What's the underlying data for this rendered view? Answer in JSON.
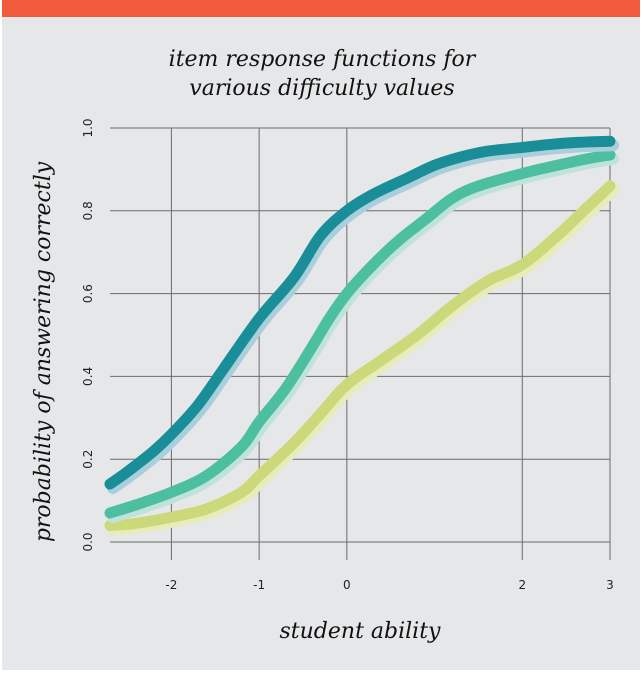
{
  "chart_data": {
    "type": "line",
    "title_lines": [
      "item response functions for",
      "various difficulty values"
    ],
    "xlabel": "student ability",
    "ylabel": "probability of answering correctly",
    "xlim": [
      -2.7,
      3
    ],
    "ylim": [
      0,
      1
    ],
    "xticks": [
      -2,
      -1,
      0,
      2,
      3
    ],
    "xtick_labels": [
      "-2",
      "-1",
      "0",
      "2",
      "3"
    ],
    "yticks": [
      0,
      0.2,
      0.4,
      0.6,
      0.8,
      1.0
    ],
    "ytick_labels": [
      "0.0",
      "0.2",
      "0.4",
      "0.6",
      "0.8",
      "1.0"
    ],
    "grid": true,
    "series": [
      {
        "color": "#1a8e98",
        "shadow": "#a9cfdc",
        "x": [
          -2.7,
          -2.5,
          -2.2,
          -2,
          -1.7,
          -1.4,
          -1,
          -0.6,
          -0.3,
          0,
          0.3,
          0.7,
          1,
          1.3,
          1.6,
          2,
          2.3,
          2.6,
          3
        ],
        "y": [
          0.14,
          0.17,
          0.22,
          0.26,
          0.33,
          0.42,
          0.54,
          0.64,
          0.74,
          0.8,
          0.84,
          0.88,
          0.91,
          0.93,
          0.944,
          0.953,
          0.96,
          0.965,
          0.968
        ]
      },
      {
        "color": "#4bbf9f",
        "shadow": "#bfe3db",
        "x": [
          -2.7,
          -2.4,
          -2,
          -1.6,
          -1.2,
          -1,
          -0.7,
          -0.4,
          -0.2,
          0,
          0.3,
          0.6,
          0.9,
          1.2,
          1.5,
          2,
          2.4,
          2.7,
          3
        ],
        "y": [
          0.07,
          0.09,
          0.12,
          0.16,
          0.23,
          0.29,
          0.37,
          0.47,
          0.54,
          0.6,
          0.67,
          0.73,
          0.78,
          0.83,
          0.86,
          0.89,
          0.91,
          0.924,
          0.935
        ]
      },
      {
        "color": "#cbd97a",
        "shadow": "#e7ecb8",
        "x": [
          -2.7,
          -2.4,
          -2,
          -1.6,
          -1.2,
          -1,
          -0.6,
          -0.3,
          0,
          0.4,
          0.8,
          1.2,
          1.6,
          2,
          2.4,
          2.7,
          3
        ],
        "y": [
          0.04,
          0.045,
          0.06,
          0.08,
          0.12,
          0.16,
          0.24,
          0.31,
          0.38,
          0.44,
          0.5,
          0.57,
          0.63,
          0.67,
          0.74,
          0.8,
          0.86
        ]
      }
    ]
  }
}
